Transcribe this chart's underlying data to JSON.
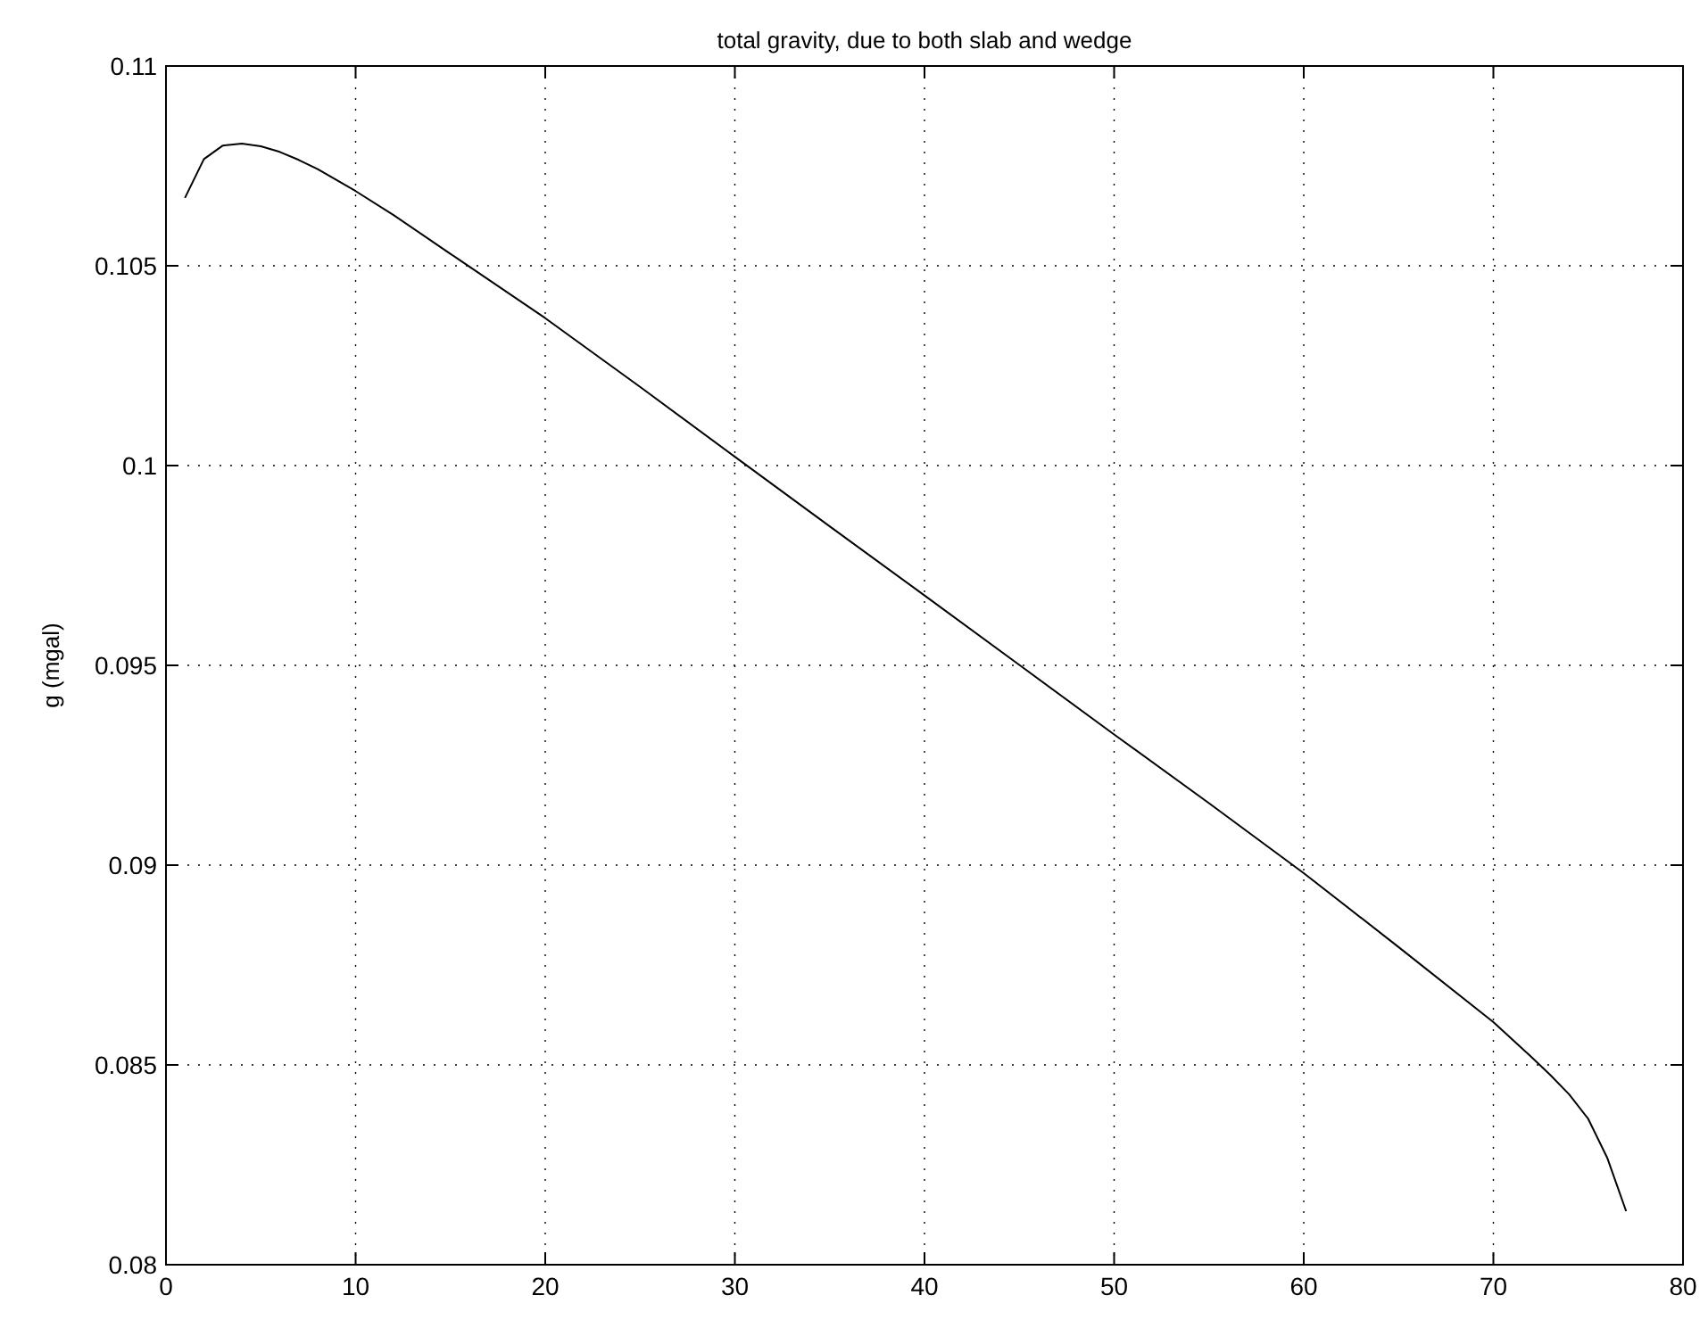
{
  "chart_data": {
    "type": "line",
    "title": "total gravity, due to both slab and wedge",
    "ylabel": "g (mgal)",
    "x": [
      1,
      2,
      3,
      4,
      5,
      6,
      7,
      8,
      10,
      12,
      15,
      20,
      25,
      30,
      35,
      40,
      45,
      50,
      55,
      60,
      65,
      70,
      72,
      73,
      74,
      75,
      76,
      77
    ],
    "series": [
      {
        "color": "#000000",
        "values": [
          0.1067,
          0.10767,
          0.10801,
          0.10806,
          0.10799,
          0.10785,
          0.10765,
          0.10742,
          0.10687,
          0.10627,
          0.1053,
          0.10369,
          0.10197,
          0.10022,
          0.09848,
          0.09675,
          0.09501,
          0.09327,
          0.09155,
          0.0898,
          0.08795,
          0.08607,
          0.0852,
          0.08475,
          0.08426,
          0.08365,
          0.08268,
          0.08134
        ]
      }
    ],
    "xlim": [
      0,
      80
    ],
    "xticks": [
      0,
      10,
      20,
      30,
      40,
      50,
      60,
      70,
      80
    ],
    "ylim": [
      0.08,
      0.11
    ],
    "yticks": [
      0.08,
      0.085,
      0.09,
      0.095,
      0.1,
      0.105,
      0.11
    ],
    "grid": true,
    "marker": "none",
    "line_style": "solid"
  }
}
